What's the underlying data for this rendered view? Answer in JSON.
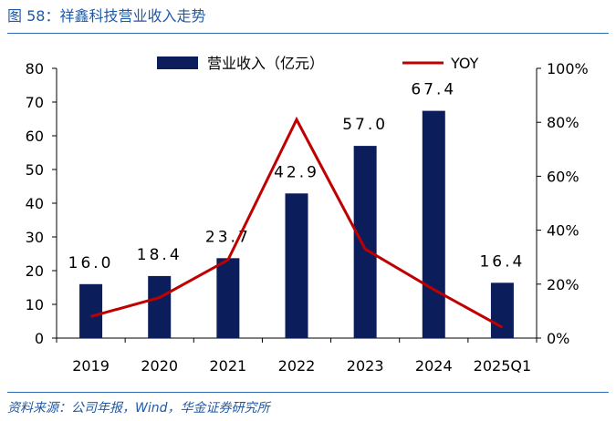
{
  "figure": {
    "title": "图 58：祥鑫科技营业收入走势",
    "source": "资料来源：公司年报，Wind，华金证券研究所"
  },
  "colors": {
    "bar": "#0B1E5B",
    "line": "#C00000",
    "title": "#1F5AA8",
    "rule": "#2E6DB4"
  },
  "chart_data": {
    "type": "bar",
    "categories": [
      "2019",
      "2020",
      "2021",
      "2022",
      "2023",
      "2024",
      "2025Q1"
    ],
    "series": [
      {
        "name": "营业收入（亿元）",
        "type": "bar",
        "axis": "left",
        "values": [
          16.0,
          18.4,
          23.7,
          42.9,
          57.0,
          67.4,
          16.4
        ],
        "labels": [
          "16.0",
          "18.4",
          "23.7",
          "42.9",
          "57.0",
          "67.4",
          "16.4"
        ]
      },
      {
        "name": "YOY",
        "type": "line",
        "axis": "right",
        "values": [
          8,
          15,
          29,
          81,
          33,
          18,
          4
        ]
      }
    ],
    "y_left": {
      "min": 0,
      "max": 80,
      "ticks": [
        "0",
        "10",
        "20",
        "30",
        "40",
        "50",
        "60",
        "70",
        "80"
      ]
    },
    "y_right": {
      "min": 0,
      "max": 100,
      "ticks": [
        "0%",
        "20%",
        "40%",
        "60%",
        "80%",
        "100%"
      ]
    },
    "legend": {
      "position": "top",
      "entries": [
        "营业收入（亿元）",
        "YOY"
      ]
    },
    "grid": false
  }
}
